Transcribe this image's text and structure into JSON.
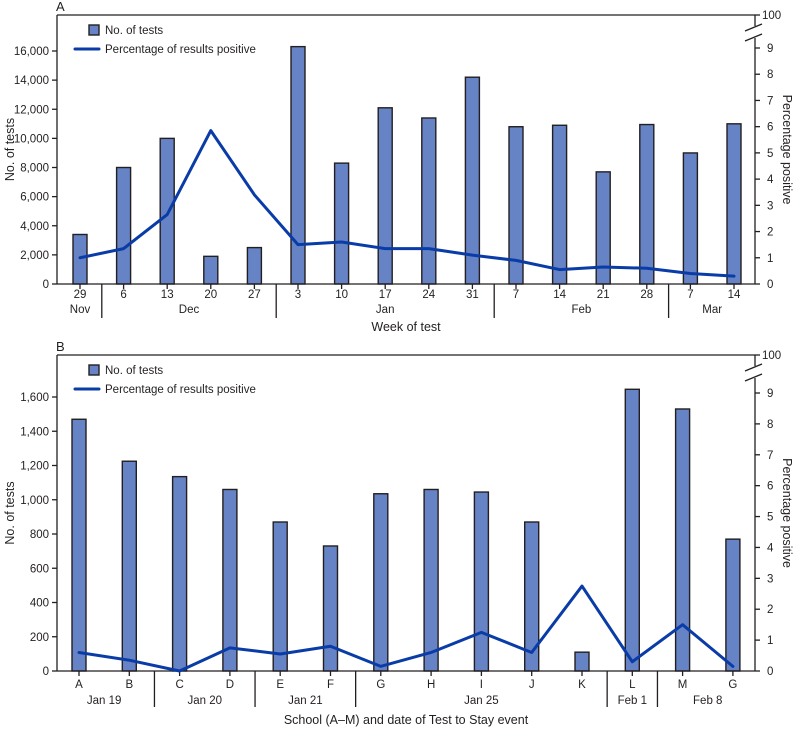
{
  "colors": {
    "bar_fill": "#6683c6",
    "line": "#0a3ca8",
    "axis": "#231f20"
  },
  "chart_data": [
    {
      "panel": "A",
      "type": "bar+line",
      "title": "",
      "panel_label": "A",
      "xlabel": "Week of test",
      "ylabel": "No. of tests",
      "ylabel_right": "Percentage positive",
      "ylim": [
        0,
        16000
      ],
      "yticks": [
        0,
        2000,
        4000,
        6000,
        8000,
        10000,
        12000,
        14000,
        16000
      ],
      "ytick_labels": [
        "0",
        "2,000",
        "4,000",
        "6,000",
        "8,000",
        "10,000",
        "12,000",
        "14,000",
        "16,000"
      ],
      "ylim_right": [
        0,
        9
      ],
      "yticks_right": [
        0,
        1,
        2,
        3,
        4,
        5,
        6,
        7,
        8,
        9
      ],
      "ytick_labels_right": [
        "0",
        "1",
        "2",
        "3",
        "4",
        "5",
        "6",
        "7",
        "8",
        "9"
      ],
      "right_axis_break_top_label": "100",
      "grid": false,
      "legend": {
        "placement": "top-left",
        "entries": [
          "No. of tests",
          "Percentage of results positive"
        ]
      },
      "categories": [
        "29",
        "6",
        "13",
        "20",
        "27",
        "3",
        "10",
        "17",
        "24",
        "31",
        "7",
        "14",
        "21",
        "28",
        "7",
        "14"
      ],
      "groups": [
        {
          "label": "Nov",
          "start": 0,
          "end": 0
        },
        {
          "label": "Dec",
          "start": 1,
          "end": 4
        },
        {
          "label": "Jan",
          "start": 5,
          "end": 9
        },
        {
          "label": "Feb",
          "start": 10,
          "end": 13
        },
        {
          "label": "Mar",
          "start": 14,
          "end": 15
        }
      ],
      "series": [
        {
          "name": "No. of tests",
          "kind": "bar",
          "axis": "left",
          "values": [
            3400,
            8000,
            10000,
            1900,
            2500,
            16300,
            8300,
            12100,
            11400,
            14200,
            10800,
            10900,
            7700,
            10950,
            9000,
            11000
          ]
        },
        {
          "name": "Percentage of results positive",
          "kind": "line",
          "axis": "right",
          "values": [
            1.0,
            1.35,
            2.65,
            5.85,
            3.4,
            1.5,
            1.6,
            1.35,
            1.35,
            1.1,
            0.9,
            0.55,
            0.65,
            0.6,
            0.4,
            0.3
          ]
        }
      ]
    },
    {
      "panel": "B",
      "type": "bar+line",
      "title": "",
      "panel_label": "B",
      "xlabel": "School (A–M) and date of Test to Stay event",
      "ylabel": "No. of tests",
      "ylabel_right": "Percentage positive",
      "ylim": [
        0,
        1600
      ],
      "yticks": [
        0,
        200,
        400,
        600,
        800,
        1000,
        1200,
        1400,
        1600
      ],
      "ytick_labels": [
        "0",
        "200",
        "400",
        "600",
        "800",
        "1,000",
        "1,200",
        "1,400",
        "1,600"
      ],
      "ylim_right": [
        0,
        9
      ],
      "yticks_right": [
        0,
        1,
        2,
        3,
        4,
        5,
        6,
        7,
        8,
        9
      ],
      "ytick_labels_right": [
        "0",
        "1",
        "2",
        "3",
        "4",
        "5",
        "6",
        "7",
        "8",
        "9"
      ],
      "right_axis_break_top_label": "100",
      "grid": false,
      "legend": {
        "placement": "top-left",
        "entries": [
          "No. of tests",
          "Percentage of results positive"
        ]
      },
      "categories": [
        "A",
        "B",
        "C",
        "D",
        "E",
        "F",
        "G",
        "H",
        "I",
        "J",
        "K",
        "L",
        "M",
        "G"
      ],
      "groups": [
        {
          "label": "Jan 19",
          "start": 0,
          "end": 1
        },
        {
          "label": "Jan 20",
          "start": 2,
          "end": 3
        },
        {
          "label": "Jan 21",
          "start": 4,
          "end": 5
        },
        {
          "label": "Jan 25",
          "start": 6,
          "end": 10
        },
        {
          "label": "Feb 1",
          "start": 11,
          "end": 11
        },
        {
          "label": "Feb 8",
          "start": 12,
          "end": 13
        }
      ],
      "series": [
        {
          "name": "No. of tests",
          "kind": "bar",
          "axis": "left",
          "values": [
            1470,
            1225,
            1135,
            1060,
            870,
            730,
            1035,
            1060,
            1045,
            870,
            110,
            1645,
            1530,
            770
          ]
        },
        {
          "name": "Percentage of results positive",
          "kind": "line",
          "axis": "right",
          "values": [
            0.6,
            0.35,
            0.0,
            0.75,
            0.55,
            0.8,
            0.15,
            0.6,
            1.25,
            0.6,
            2.75,
            0.3,
            1.5,
            0.15
          ]
        }
      ]
    }
  ]
}
